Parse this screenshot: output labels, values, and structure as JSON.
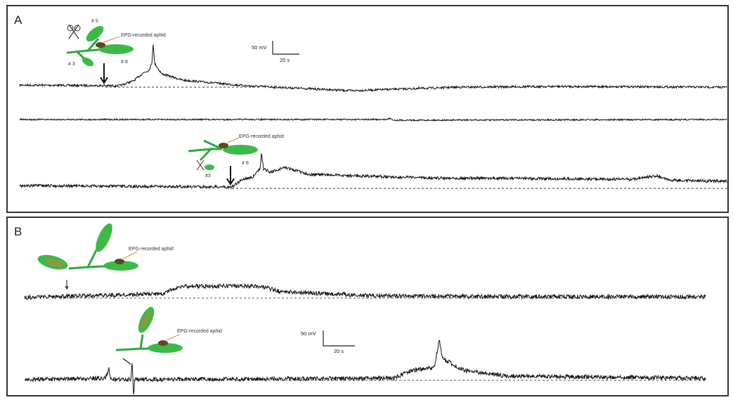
{
  "panels": [
    {
      "label": "A",
      "insets": [
        {
          "labels": [
            "# 5",
            "EPG-recorded aphid",
            "# 3",
            "# 8"
          ]
        },
        {
          "labels": [
            "EPG-recorded aphid",
            "# 8",
            "#3"
          ]
        }
      ],
      "scale_bar": {
        "voltage": "50 mV",
        "time": "20 s"
      }
    },
    {
      "label": "B",
      "insets": [
        {
          "labels": [
            "EPG-recorded aphid"
          ]
        },
        {
          "labels": [
            "EPG-recorded aphid"
          ]
        }
      ],
      "scale_bar": {
        "voltage": "50 mV",
        "time": "20 s"
      }
    }
  ]
}
